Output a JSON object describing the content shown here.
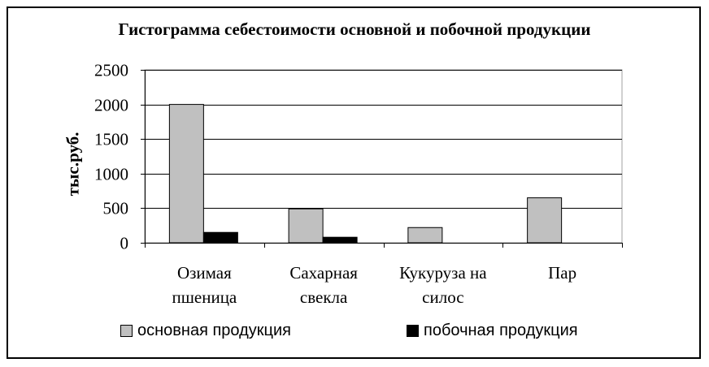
{
  "chart_data": {
    "type": "bar",
    "title": "Гистограмма себестоимости основной и побочной продукции",
    "xlabel": "",
    "ylabel": "тыс.руб.",
    "ylim": [
      0,
      2500
    ],
    "yticks": [
      "2500",
      "2000",
      "1500",
      "1000",
      "500",
      "0"
    ],
    "ytick_values": [
      2500,
      2000,
      1500,
      1000,
      500,
      0
    ],
    "categories": [
      [
        "Озимая",
        "пшеница"
      ],
      [
        "Сахарная",
        "свекла"
      ],
      [
        "Кукуруза на",
        "силос"
      ],
      [
        "Пар"
      ]
    ],
    "series": [
      {
        "name": "основная продукция",
        "color": "#c0c0c0",
        "values": [
          2000,
          490,
          220,
          650
        ]
      },
      {
        "name": "побочная продукция",
        "color": "#000000",
        "values": [
          150,
          80,
          0,
          0
        ]
      }
    ],
    "grid": true,
    "legend": "bottom"
  }
}
